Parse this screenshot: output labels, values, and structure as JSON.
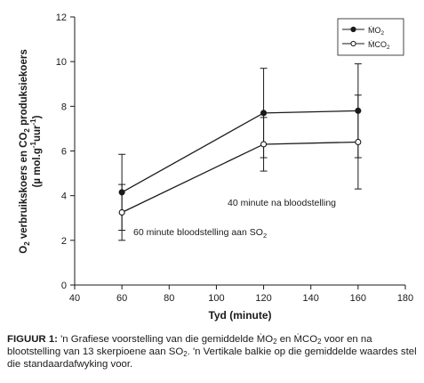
{
  "chart_data": {
    "type": "line",
    "xlabel": "Tyd (minute)",
    "ylabel_parts": {
      "a": "O",
      "a_sub": "2",
      "b": " verbruikskoers en CO",
      "b_sub": "2",
      "c": " produksiekoers",
      "line2": "(µ mol.g",
      "line2_sup1": "-1",
      "line2_mid": "uur",
      "line2_sup2": "-1",
      "line2_end": ")"
    },
    "xlim": [
      40,
      180
    ],
    "ylim": [
      0,
      12
    ],
    "xticks": [
      40,
      60,
      80,
      100,
      120,
      140,
      160,
      180
    ],
    "yticks": [
      0,
      2,
      4,
      6,
      8,
      10,
      12
    ],
    "grid": false,
    "legend_position": "top-right",
    "series": [
      {
        "name": "ṀO",
        "name_sub": "2",
        "marker": "filled-circle",
        "color": "#1a1a1a",
        "x": [
          60,
          120,
          160
        ],
        "y": [
          4.15,
          7.7,
          7.8
        ],
        "err": [
          1.7,
          2.0,
          2.1
        ]
      },
      {
        "name": "ṀCO",
        "name_sub": "2",
        "marker": "open-circle",
        "color": "#1a1a1a",
        "x": [
          60,
          120,
          160
        ],
        "y": [
          3.25,
          6.3,
          6.4
        ],
        "err": [
          1.25,
          1.2,
          2.1
        ]
      }
    ],
    "annotations": {
      "a1": "40 minute na bloodstelling",
      "a2": "60 minute bloodstelling aan SO",
      "a2_sub": "2"
    }
  },
  "caption": {
    "lead": "FIGUUR 1:",
    "t1": " 'n Grafiese voorstelling van die gemiddelde ṀO",
    "t1_sub": "2",
    "t2": " en ṀCO",
    "t2_sub": "2",
    "t3": " voor en na blootstelling van 13 skerpioene aan SO",
    "t3_sub": "2",
    "t4": ". 'n Vertikale balkie op die gemiddelde waardes stel die standaardafwyking voor."
  }
}
